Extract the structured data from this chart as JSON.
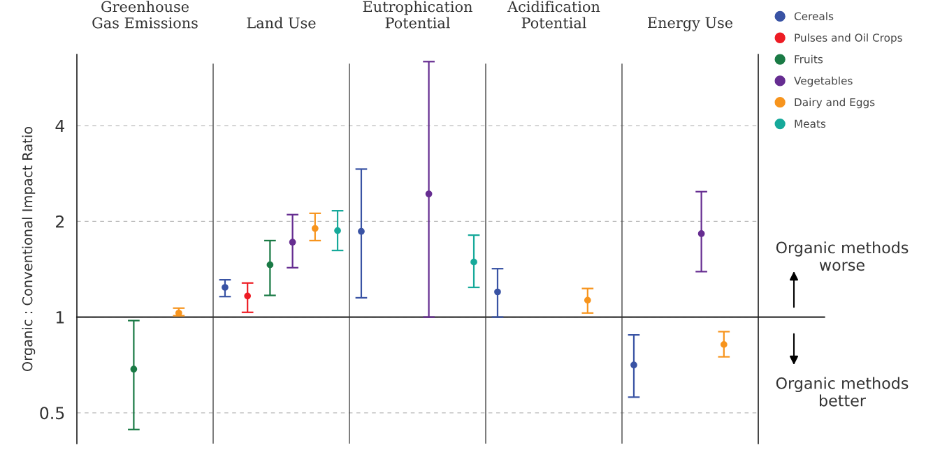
{
  "chart_data": {
    "type": "scatter",
    "categories": [
      "Greenhouse\nGas Emissions",
      "Land Use",
      "Eutrophication\nPotential",
      "Acidification\nPotential",
      "Energy Use"
    ],
    "ylabel": "Organic : Conventional Impact Ratio",
    "log": "y",
    "ylim": [
      0.4,
      6.7
    ],
    "yticks": [
      0.5,
      1,
      2,
      4
    ],
    "grid": "y",
    "legend": "top right",
    "marker": "circle",
    "ref_lines": [
      {
        "axis": "y",
        "value": 1,
        "color": "#333333",
        "line_style": "solid"
      }
    ],
    "annotations": [
      "Organic methods\nworse",
      "Organic methods\nbetter"
    ],
    "series": [
      {
        "name": "Cereals",
        "color": "#3953a4",
        "values": [
          null,
          1.24,
          1.86,
          1.2,
          0.707
        ],
        "errors": [
          null,
          [
            1.16,
            1.31
          ],
          [
            1.15,
            2.92
          ],
          [
            1.0,
            1.42
          ],
          [
            0.56,
            0.879
          ]
        ]
      },
      {
        "name": "Pulses and Oil Crops",
        "color": "#ed1c24",
        "values": [
          null,
          1.165,
          null,
          null,
          null
        ],
        "errors": [
          null,
          [
            1.035,
            1.28
          ],
          null,
          null,
          null
        ]
      },
      {
        "name": "Fruits",
        "color": "#1a7a45",
        "values": [
          0.686,
          1.46,
          null,
          null,
          null
        ],
        "errors": [
          [
            0.443,
            0.975
          ],
          [
            1.17,
            1.74
          ],
          null,
          null,
          null
        ]
      },
      {
        "name": "Vegetables",
        "color": "#662d91",
        "values": [
          null,
          1.72,
          2.44,
          null,
          1.83
        ],
        "errors": [
          null,
          [
            1.43,
            2.1
          ],
          [
            1.0,
            6.36
          ],
          null,
          [
            1.39,
            2.48
          ]
        ]
      },
      {
        "name": "Dairy and Eggs",
        "color": "#f7941d",
        "values": [
          1.03,
          1.9,
          null,
          1.13,
          0.82
        ],
        "errors": [
          [
            1.01,
            1.067
          ],
          [
            1.74,
            2.12
          ],
          null,
          [
            1.03,
            1.23
          ],
          [
            0.75,
            0.9
          ]
        ]
      },
      {
        "name": "Meats",
        "color": "#16a99a",
        "values": [
          null,
          1.87,
          1.49,
          null,
          null
        ],
        "errors": [
          null,
          [
            1.62,
            2.16
          ],
          [
            1.24,
            1.81
          ],
          null,
          null
        ]
      }
    ]
  }
}
